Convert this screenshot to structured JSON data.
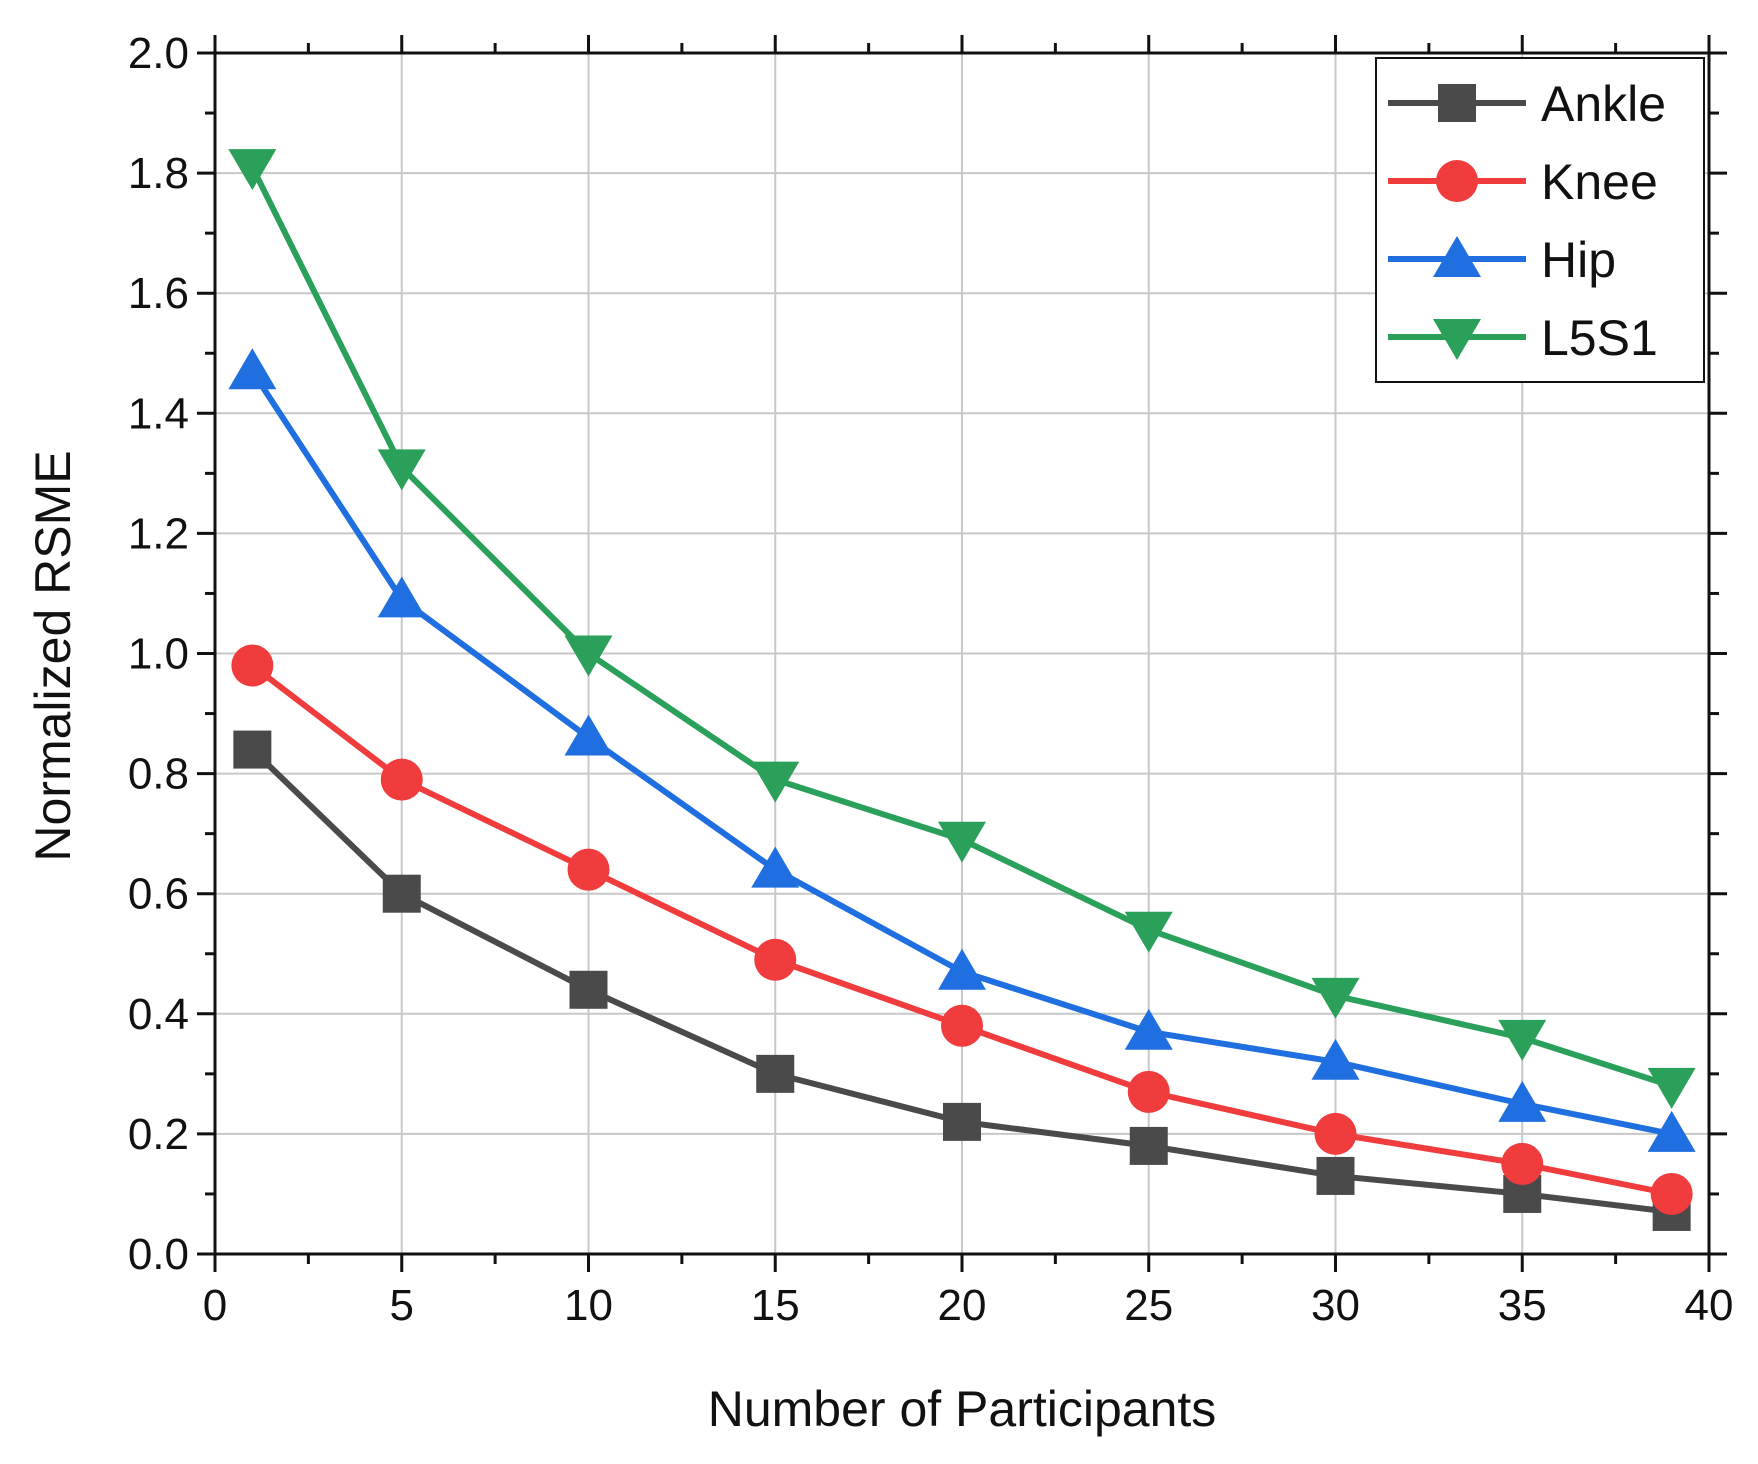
{
  "chart_data": {
    "type": "line",
    "title": "",
    "xlabel": "Number of Participants",
    "ylabel": "Normalized RSME",
    "xlim": [
      0,
      40
    ],
    "ylim": [
      0,
      2.0
    ],
    "xticks": [
      0,
      5,
      10,
      15,
      20,
      25,
      30,
      35,
      40
    ],
    "yticks": [
      0.0,
      0.2,
      0.4,
      0.6,
      0.8,
      1.0,
      1.2,
      1.4,
      1.6,
      1.8,
      2.0
    ],
    "xtick_labels": [
      "0",
      "5",
      "10",
      "15",
      "20",
      "25",
      "30",
      "35",
      "40"
    ],
    "ytick_labels": [
      "0.0",
      "0.2",
      "0.4",
      "0.6",
      "0.8",
      "1.0",
      "1.2",
      "1.4",
      "1.6",
      "1.8",
      "2.0"
    ],
    "grid": true,
    "legend_position": "top-right",
    "x": [
      1,
      5,
      10,
      15,
      20,
      25,
      30,
      35,
      39
    ],
    "series": [
      {
        "name": "Ankle",
        "color": "#4a4a4a",
        "marker": "square",
        "values": [
          0.84,
          0.6,
          0.44,
          0.3,
          0.22,
          0.18,
          0.13,
          0.1,
          0.07
        ]
      },
      {
        "name": "Knee",
        "color": "#f03c3c",
        "marker": "circle",
        "values": [
          0.98,
          0.79,
          0.64,
          0.49,
          0.38,
          0.27,
          0.2,
          0.15,
          0.1
        ]
      },
      {
        "name": "Hip",
        "color": "#1f6fe0",
        "marker": "triangle-up",
        "values": [
          1.47,
          1.09,
          0.86,
          0.64,
          0.47,
          0.37,
          0.32,
          0.25,
          0.2
        ]
      },
      {
        "name": "L5S1",
        "color": "#2aa05a",
        "marker": "triangle-down",
        "values": [
          1.81,
          1.31,
          1.0,
          0.79,
          0.69,
          0.54,
          0.43,
          0.36,
          0.28
        ]
      }
    ]
  }
}
